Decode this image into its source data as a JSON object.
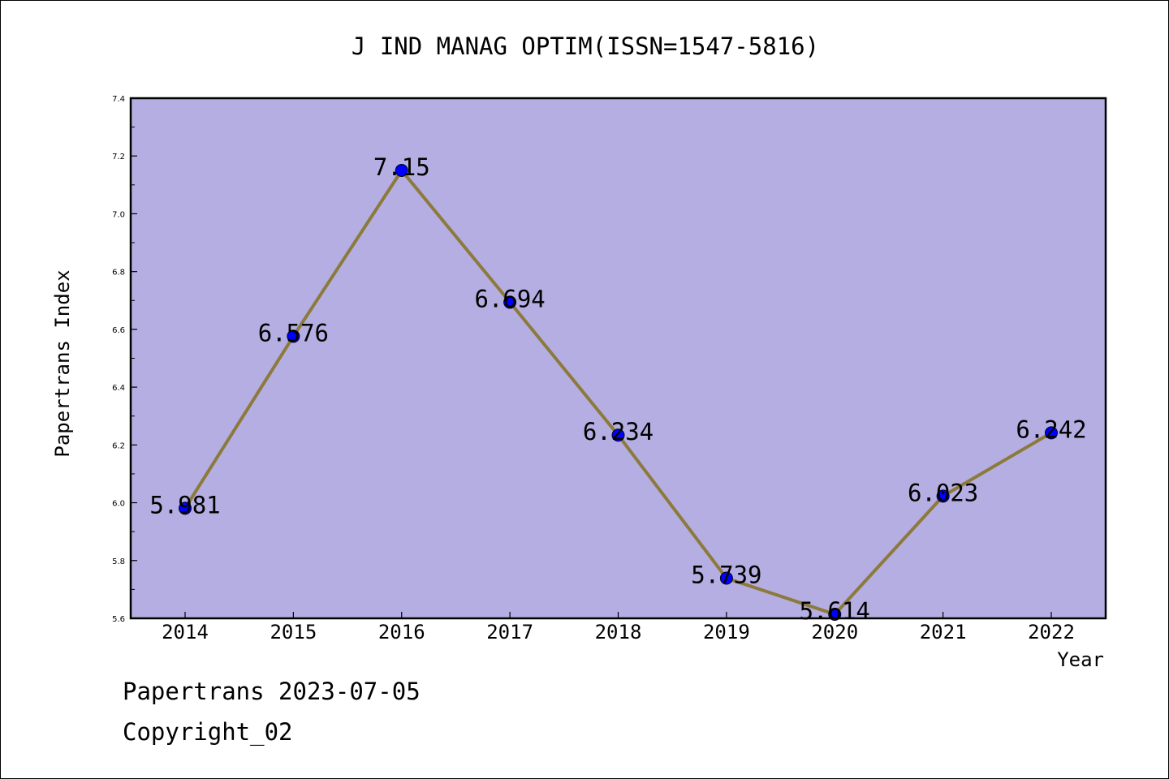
{
  "chart_data": {
    "type": "line",
    "title": "J IND MANAG OPTIM(ISSN=1547-5816)",
    "xlabel": "Year",
    "ylabel": "Papertrans Index",
    "x": [
      "2014",
      "2015",
      "2016",
      "2017",
      "2018",
      "2019",
      "2020",
      "2021",
      "2022"
    ],
    "values": [
      5.981,
      6.576,
      7.15,
      6.694,
      6.234,
      5.739,
      5.614,
      6.023,
      6.242
    ],
    "data_labels": [
      "5.981",
      "6.576",
      "7.15",
      "6.694",
      "6.234",
      "5.739",
      "5.614",
      "6.023",
      "6.242"
    ],
    "ylim": [
      5.6,
      7.4
    ],
    "yticks": [
      "5.6",
      "5.8",
      "6.0",
      "6.2",
      "6.4",
      "6.6",
      "6.8",
      "7.0",
      "7.2",
      "7.4"
    ],
    "grid": false,
    "colors": {
      "plot_background": "#b4aee2",
      "line": "#8c7a3c",
      "marker": "#0000ff"
    }
  },
  "footer": {
    "line1": "Papertrans 2023-07-05",
    "line2": "Copyright_02"
  }
}
